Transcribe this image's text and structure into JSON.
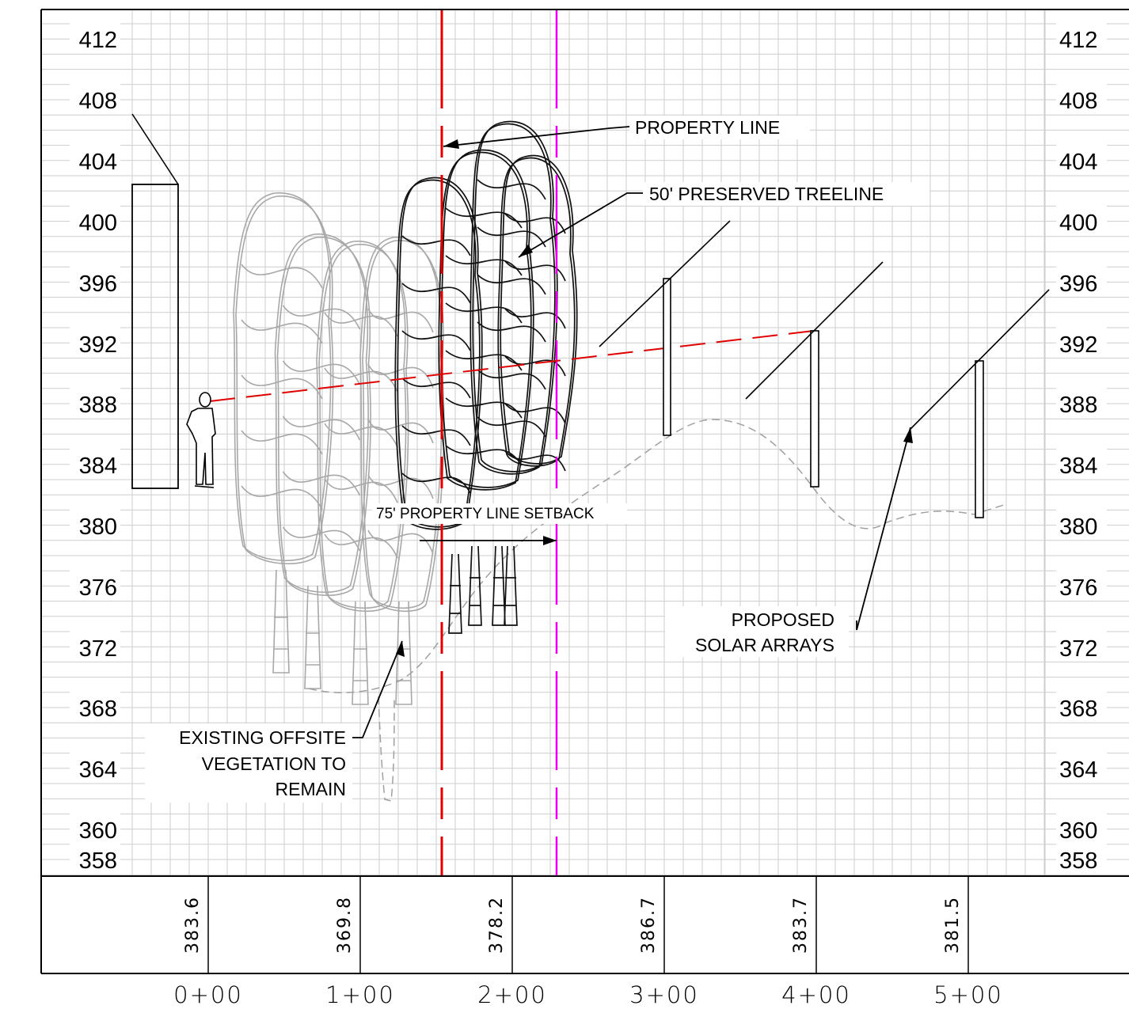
{
  "profile": {
    "elevations_left": [
      "412",
      "408",
      "404",
      "400",
      "396",
      "392",
      "388",
      "384",
      "380",
      "376",
      "372",
      "368",
      "364",
      "360",
      "358"
    ],
    "elevations_right": [
      "412",
      "408",
      "404",
      "400",
      "396",
      "392",
      "388",
      "384",
      "380",
      "376",
      "372",
      "368",
      "364",
      "360",
      "358"
    ],
    "stations": [
      "0+00",
      "1+00",
      "2+00",
      "3+00",
      "4+00",
      "5+00"
    ],
    "ground_elevations": [
      "383.6",
      "369.8",
      "378.2",
      "386.7",
      "383.7",
      "381.5"
    ]
  },
  "callouts": {
    "property_line": "PROPERTY LINE",
    "preserved_treeline": "50' PRESERVED TREELINE",
    "setback": "75' PROPERTY LINE SETBACK",
    "solar_line1": "PROPOSED",
    "solar_line2": "SOLAR ARRAYS",
    "veg_line1": "EXISTING OFFSITE",
    "veg_line2": "VEGETATION TO",
    "veg_line3": "REMAIN"
  },
  "colors": {
    "property_line": "#e00000",
    "setback_line": "#ee00ee",
    "sightline": "#e00000",
    "grid": "#c8c8c8",
    "existing_vegetation": "#a8a8a8",
    "preserved_trees": "#111111"
  }
}
